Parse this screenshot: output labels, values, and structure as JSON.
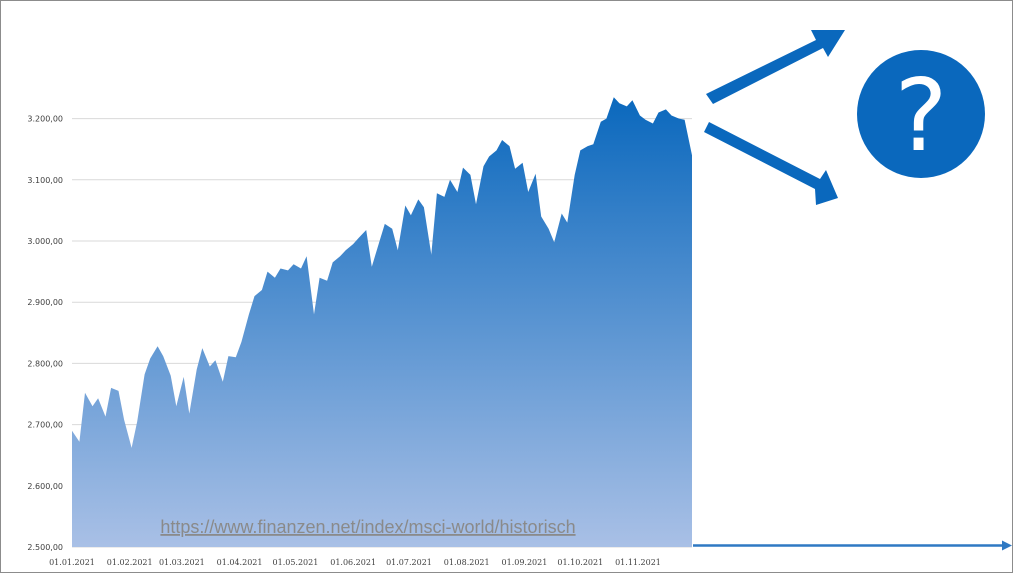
{
  "chart_data": {
    "type": "area",
    "title": "",
    "xlabel": "",
    "ylabel": "",
    "ylim": [
      2500,
      3250
    ],
    "yticks": [
      2500,
      2600,
      2700,
      2800,
      2900,
      3000,
      3100,
      3200
    ],
    "ytick_labels": [
      "2.500,00",
      "2.600,00",
      "2.700,00",
      "2.800,00",
      "2.900,00",
      "3.000,00",
      "3.100,00",
      "3.200,00"
    ],
    "xtick_labels": [
      "01.01.2021",
      "01.02.2021",
      "01.03.2021",
      "01.04.2021",
      "01.05.2021",
      "01.06.2021",
      "01.07.2021",
      "01.08.2021",
      "01.09.2021",
      "01.10.2021",
      "01.11.2021"
    ],
    "grid": true,
    "gradient_colors": [
      "#0a68bd",
      "#a9c0e6"
    ],
    "series": [
      {
        "x": [
          "2021-01-01",
          "2021-01-05",
          "2021-01-08",
          "2021-01-12",
          "2021-01-15",
          "2021-01-19",
          "2021-01-22",
          "2021-01-26",
          "2021-01-29",
          "2021-02-02",
          "2021-02-05",
          "2021-02-09",
          "2021-02-12",
          "2021-02-16",
          "2021-02-19",
          "2021-02-23",
          "2021-02-26",
          "2021-03-02",
          "2021-03-05",
          "2021-03-09",
          "2021-03-12",
          "2021-03-16",
          "2021-03-19",
          "2021-03-23",
          "2021-03-26",
          "2021-03-30",
          "2021-04-02",
          "2021-04-06",
          "2021-04-09",
          "2021-04-13",
          "2021-04-16",
          "2021-04-20",
          "2021-04-23",
          "2021-04-27",
          "2021-04-30",
          "2021-05-04",
          "2021-05-07",
          "2021-05-11",
          "2021-05-14",
          "2021-05-18",
          "2021-05-21",
          "2021-05-25",
          "2021-05-28",
          "2021-06-01",
          "2021-06-04",
          "2021-06-08",
          "2021-06-11",
          "2021-06-15",
          "2021-06-18",
          "2021-06-22",
          "2021-06-25",
          "2021-06-29",
          "2021-07-02",
          "2021-07-06",
          "2021-07-09",
          "2021-07-13",
          "2021-07-16",
          "2021-07-20",
          "2021-07-23",
          "2021-07-27",
          "2021-07-30",
          "2021-08-03",
          "2021-08-06",
          "2021-08-10",
          "2021-08-13",
          "2021-08-17",
          "2021-08-20",
          "2021-08-24",
          "2021-08-27",
          "2021-08-31",
          "2021-09-03",
          "2021-09-07",
          "2021-09-10",
          "2021-09-14",
          "2021-09-17",
          "2021-09-21",
          "2021-09-24",
          "2021-09-28",
          "2021-10-01",
          "2021-10-05",
          "2021-10-08",
          "2021-10-12",
          "2021-10-15",
          "2021-10-19",
          "2021-10-22",
          "2021-10-26",
          "2021-10-29",
          "2021-11-02",
          "2021-11-05",
          "2021-11-09",
          "2021-11-12",
          "2021-11-16",
          "2021-11-19",
          "2021-11-23",
          "2021-11-26",
          "2021-11-30"
        ],
        "y": [
          2690,
          2672,
          2752,
          2730,
          2743,
          2713,
          2760,
          2755,
          2708,
          2662,
          2705,
          2782,
          2808,
          2828,
          2812,
          2780,
          2730,
          2778,
          2718,
          2790,
          2825,
          2795,
          2805,
          2770,
          2812,
          2810,
          2835,
          2880,
          2910,
          2920,
          2950,
          2940,
          2955,
          2952,
          2962,
          2955,
          2975,
          2880,
          2940,
          2935,
          2965,
          2975,
          2985,
          2995,
          3005,
          3018,
          2958,
          2998,
          3028,
          3020,
          2985,
          3058,
          3042,
          3068,
          3055,
          2978,
          3078,
          3072,
          3100,
          3080,
          3120,
          3108,
          3060,
          3122,
          3138,
          3148,
          3165,
          3155,
          3118,
          3128,
          3080,
          3110,
          3040,
          3020,
          2998,
          3045,
          3030,
          3108,
          3148,
          3155,
          3158,
          3195,
          3200,
          3235,
          3225,
          3220,
          3230,
          3205,
          3198,
          3192,
          3210,
          3215,
          3205,
          3200,
          3198,
          3140
        ]
      }
    ],
    "source_text": "https://www.finanzen.net/index/msci-world/historisch",
    "question_symbol": "?"
  }
}
